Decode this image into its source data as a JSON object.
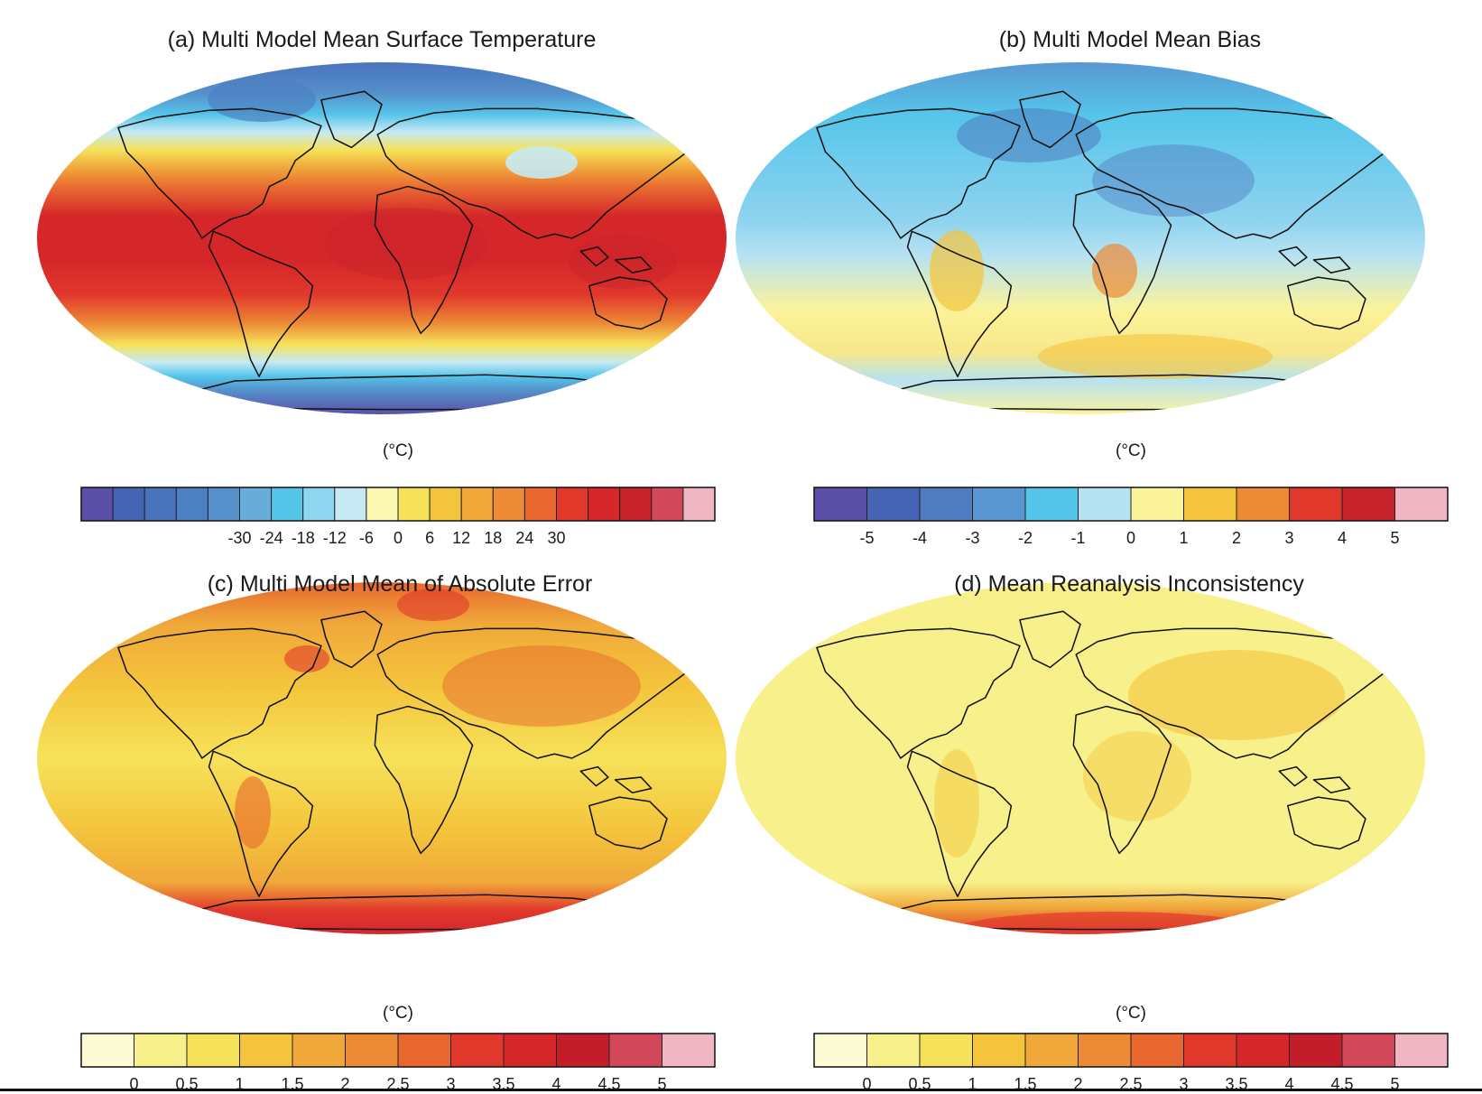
{
  "panels": [
    {
      "id": "a",
      "title": "(a) Multi Model Mean Surface Temperature",
      "unit": "(°C)",
      "ticks": [
        "-30",
        "-24",
        "-18",
        "-12",
        "-6",
        "0",
        "6",
        "12",
        "18",
        "24",
        "30"
      ],
      "colors": [
        "#5b4fa8",
        "#4664b4",
        "#4a73bd",
        "#4d80c2",
        "#5590cb",
        "#68acd9",
        "#55c5ea",
        "#8ed6ef",
        "#c6e9f4",
        "#fbf7b3",
        "#f6e25a",
        "#f4c53c",
        "#f0a83a",
        "#ec8a35",
        "#e8672f",
        "#e1382c",
        "#d5262a",
        "#c8232b",
        "#d2475a",
        "#f0b6c4"
      ]
    },
    {
      "id": "b",
      "title": "(b) Multi Model Mean Bias",
      "unit": "(°C)",
      "ticks": [
        "-5",
        "-4",
        "-3",
        "-2",
        "-1",
        "0",
        "1",
        "2",
        "3",
        "4",
        "5"
      ],
      "colors": [
        "#5b4fa8",
        "#4664b4",
        "#4f7cc0",
        "#5a97d2",
        "#55c5ea",
        "#b7e2f2",
        "#fbf39a",
        "#f4c53c",
        "#ec8a35",
        "#e1382c",
        "#c8232b",
        "#f0b6c4"
      ]
    },
    {
      "id": "c",
      "title": "(c) Multi Model Mean of Absolute Error",
      "unit": "(°C)",
      "ticks": [
        "0",
        "0.5",
        "1",
        "1.5",
        "2",
        "2.5",
        "3",
        "3.5",
        "4",
        "4.5",
        "5"
      ],
      "colors": [
        "#fdfbd3",
        "#f8f08a",
        "#f6e25a",
        "#f4c53c",
        "#f0a83a",
        "#ec8a35",
        "#e8672f",
        "#e1382c",
        "#d5262a",
        "#c41d2a",
        "#d2475a",
        "#f0b6c4"
      ]
    },
    {
      "id": "d",
      "title": "(d) Mean Reanalysis Inconsistency",
      "unit": "(°C)",
      "ticks": [
        "0",
        "0.5",
        "1",
        "1.5",
        "2",
        "2.5",
        "3",
        "3.5",
        "4",
        "4.5",
        "5"
      ],
      "colors": [
        "#fdfbd3",
        "#f8f08a",
        "#f6e25a",
        "#f4c53c",
        "#f0a83a",
        "#ec8a35",
        "#e8672f",
        "#e1382c",
        "#d5262a",
        "#c41d2a",
        "#d2475a",
        "#f0b6c4"
      ]
    }
  ]
}
